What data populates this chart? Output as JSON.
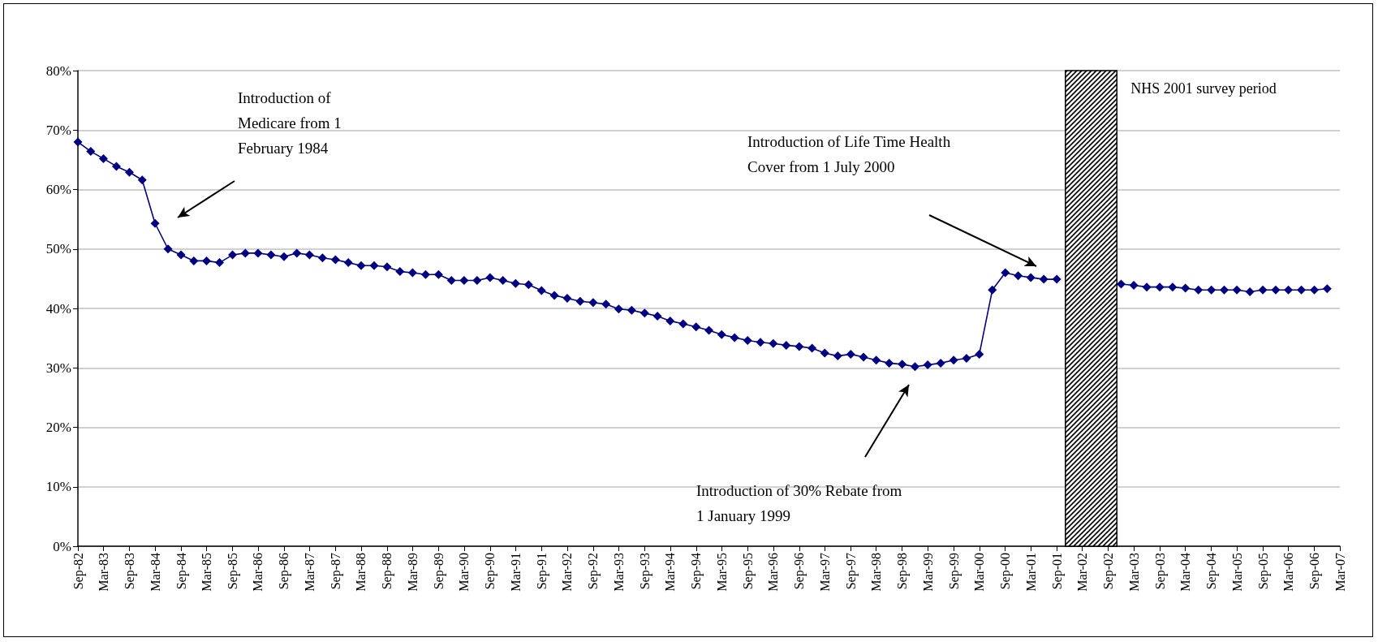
{
  "chart_data": {
    "type": "line",
    "x": [
      "1982-09",
      "1982-12",
      "1983-03",
      "1983-06",
      "1983-09",
      "1983-12",
      "1984-03",
      "1984-06",
      "1984-09",
      "1984-12",
      "1985-03",
      "1985-06",
      "1985-09",
      "1985-12",
      "1986-03",
      "1986-06",
      "1986-09",
      "1986-12",
      "1987-03",
      "1987-06",
      "1987-09",
      "1987-12",
      "1988-03",
      "1988-06",
      "1988-09",
      "1988-12",
      "1989-03",
      "1989-06",
      "1989-09",
      "1989-12",
      "1990-03",
      "1990-06",
      "1990-09",
      "1990-12",
      "1991-03",
      "1991-06",
      "1991-09",
      "1991-12",
      "1992-03",
      "1992-06",
      "1992-09",
      "1992-12",
      "1993-03",
      "1993-06",
      "1993-09",
      "1993-12",
      "1994-03",
      "1994-06",
      "1994-09",
      "1994-12",
      "1995-03",
      "1995-06",
      "1995-09",
      "1995-12",
      "1996-03",
      "1996-06",
      "1996-09",
      "1996-12",
      "1997-03",
      "1997-06",
      "1997-09",
      "1997-12",
      "1998-03",
      "1998-06",
      "1998-09",
      "1998-12",
      "1999-03",
      "1999-06",
      "1999-09",
      "1999-12",
      "2000-03",
      "2000-06",
      "2000-09",
      "2000-12",
      "2001-03",
      "2001-06",
      "2001-09",
      "2001-12",
      "2002-03",
      "2002-06",
      "2002-09",
      "2002-12",
      "2003-03",
      "2003-06",
      "2003-09",
      "2003-12",
      "2004-03",
      "2004-06",
      "2004-09",
      "2004-12",
      "2005-03",
      "2005-06",
      "2005-09",
      "2005-12",
      "2006-03",
      "2006-06",
      "2006-09",
      "2006-12"
    ],
    "values": [
      68,
      66.4,
      65.2,
      63.9,
      62.9,
      61.6,
      54.3,
      50,
      49,
      48,
      48,
      47.7,
      49,
      49.3,
      49.3,
      49,
      48.7,
      49.3,
      49,
      48.5,
      48.2,
      47.7,
      47.2,
      47.2,
      47,
      46.2,
      46,
      45.7,
      45.7,
      44.7,
      44.7,
      44.7,
      45.2,
      44.7,
      44.2,
      44,
      43,
      42.2,
      41.7,
      41.2,
      41,
      40.7,
      39.9,
      39.7,
      39.2,
      38.7,
      37.9,
      37.4,
      36.9,
      36.3,
      35.6,
      35.1,
      34.6,
      34.3,
      34.1,
      33.8,
      33.6,
      33.3,
      32.5,
      32,
      32.3,
      31.8,
      31.3,
      30.8,
      30.6,
      30.2,
      30.5,
      30.8,
      31.3,
      31.6,
      32.3,
      43.1,
      46,
      45.5,
      45.2,
      44.9,
      44.9,
      null,
      null,
      null,
      null,
      44.1,
      43.9,
      43.6,
      43.6,
      43.6,
      43.4,
      43.1,
      43.1,
      43.1,
      43.1,
      42.8,
      43.1,
      43.1,
      43.1,
      43.1,
      43.1,
      43.3
    ],
    "color": "#000080",
    "marker": "diamond",
    "line_style": "solid",
    "grid": "y",
    "xlim": [
      "1982-09",
      "2007-03"
    ],
    "xticks": [
      {
        "value": "1982-09",
        "label": "Sep-82"
      },
      {
        "value": "1983-03",
        "label": "Mar-83"
      },
      {
        "value": "1983-09",
        "label": "Sep-83"
      },
      {
        "value": "1984-03",
        "label": "Mar-84"
      },
      {
        "value": "1984-09",
        "label": "Sep-84"
      },
      {
        "value": "1985-03",
        "label": "Mar-85"
      },
      {
        "value": "1985-09",
        "label": "Sep-85"
      },
      {
        "value": "1986-03",
        "label": "Mar-86"
      },
      {
        "value": "1986-09",
        "label": "Sep-86"
      },
      {
        "value": "1987-03",
        "label": "Mar-87"
      },
      {
        "value": "1987-09",
        "label": "Sep-87"
      },
      {
        "value": "1988-03",
        "label": "Mar-88"
      },
      {
        "value": "1988-09",
        "label": "Sep-88"
      },
      {
        "value": "1989-03",
        "label": "Mar-89"
      },
      {
        "value": "1989-09",
        "label": "Sep-89"
      },
      {
        "value": "1990-03",
        "label": "Mar-90"
      },
      {
        "value": "1990-09",
        "label": "Sep-90"
      },
      {
        "value": "1991-03",
        "label": "Mar-91"
      },
      {
        "value": "1991-09",
        "label": "Sep-91"
      },
      {
        "value": "1992-03",
        "label": "Mar-92"
      },
      {
        "value": "1992-09",
        "label": "Sep-92"
      },
      {
        "value": "1993-03",
        "label": "Mar-93"
      },
      {
        "value": "1993-09",
        "label": "Sep-93"
      },
      {
        "value": "1994-03",
        "label": "Mar-94"
      },
      {
        "value": "1994-09",
        "label": "Sep-94"
      },
      {
        "value": "1995-03",
        "label": "Mar-95"
      },
      {
        "value": "1995-09",
        "label": "Sep-95"
      },
      {
        "value": "1996-03",
        "label": "Mar-96"
      },
      {
        "value": "1996-09",
        "label": "Sep-96"
      },
      {
        "value": "1997-03",
        "label": "Mar-97"
      },
      {
        "value": "1997-09",
        "label": "Sep-97"
      },
      {
        "value": "1998-03",
        "label": "Mar-98"
      },
      {
        "value": "1998-09",
        "label": "Sep-98"
      },
      {
        "value": "1999-03",
        "label": "Mar-99"
      },
      {
        "value": "1999-09",
        "label": "Sep-99"
      },
      {
        "value": "2000-03",
        "label": "Mar-00"
      },
      {
        "value": "2000-09",
        "label": "Sep-00"
      },
      {
        "value": "2001-03",
        "label": "Mar-01"
      },
      {
        "value": "2001-09",
        "label": "Sep-01"
      },
      {
        "value": "2002-03",
        "label": "Mar-02"
      },
      {
        "value": "2002-09",
        "label": "Sep-02"
      },
      {
        "value": "2003-03",
        "label": "Mar-03"
      },
      {
        "value": "2003-09",
        "label": "Sep-03"
      },
      {
        "value": "2004-03",
        "label": "Mar-04"
      },
      {
        "value": "2004-09",
        "label": "Sep-04"
      },
      {
        "value": "2005-03",
        "label": "Mar-05"
      },
      {
        "value": "2005-09",
        "label": "Sep-05"
      },
      {
        "value": "2006-03",
        "label": "Mar-06"
      },
      {
        "value": "2006-09",
        "label": "Sep-06"
      },
      {
        "value": "2007-03",
        "label": "Mar-07"
      }
    ],
    "ylim": [
      0,
      80
    ],
    "yticks": [
      {
        "value": 0,
        "label": "0%"
      },
      {
        "value": 10,
        "label": "10%"
      },
      {
        "value": 20,
        "label": "20%"
      },
      {
        "value": 30,
        "label": "30%"
      },
      {
        "value": 40,
        "label": "40%"
      },
      {
        "value": 50,
        "label": "50%"
      },
      {
        "value": 60,
        "label": "60%"
      },
      {
        "value": 70,
        "label": "70%"
      },
      {
        "value": 80,
        "label": "80%"
      }
    ],
    "bands": [
      {
        "axis": "x",
        "from": "2001-11",
        "to": "2002-11",
        "label": "NHS 2001 survey period",
        "color": "#000000"
      }
    ],
    "annotations": [
      "Introduction of Medicare from 1 February 1984",
      "Introduction of Life Time Health Cover from 1 July 2000",
      "Introduction of 30% Rebate from 1 January 1999"
    ]
  }
}
